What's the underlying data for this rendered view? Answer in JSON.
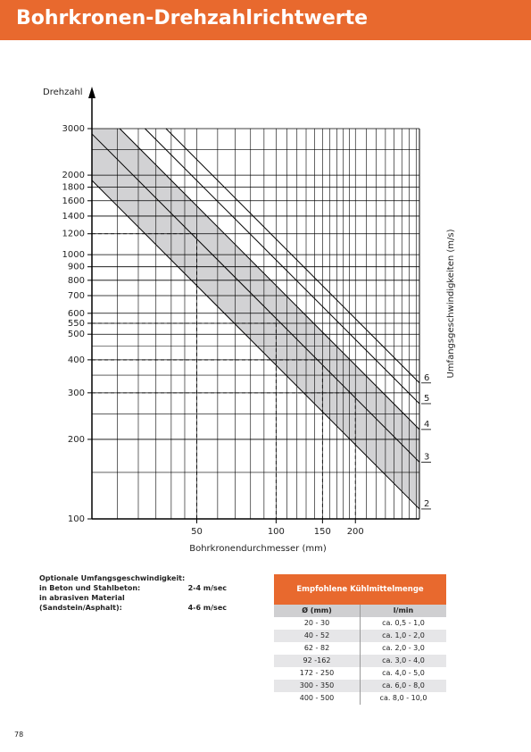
{
  "header": {
    "title": "Bohrkronen-Drehzahlrichtwerte"
  },
  "chart_data": {
    "type": "line",
    "y_label": "Drehzahl",
    "x_label": "Bohrkronendurchmesser (mm)",
    "y2_label": "Umfangsgeschwindigkeiten (m/s)",
    "log_x": true,
    "log_y": true,
    "xlim": [
      20,
      350
    ],
    "ylim": [
      100,
      3000
    ],
    "xticks": [
      50,
      100,
      150,
      200
    ],
    "yticks": [
      100,
      200,
      300,
      400,
      500,
      550,
      600,
      700,
      800,
      900,
      1000,
      1200,
      1400,
      1600,
      1800,
      2000,
      3000
    ],
    "xgrid": [
      25,
      30,
      35,
      40,
      45,
      50,
      60,
      70,
      80,
      90,
      100,
      110,
      120,
      130,
      140,
      150,
      160,
      170,
      180,
      190,
      200,
      220,
      240,
      260,
      280,
      300,
      320,
      340
    ],
    "ygrid": [
      150,
      250,
      350,
      450,
      2500
    ],
    "grid": true,
    "series": [
      {
        "name": "2",
        "color": "#000000",
        "x": [
          20,
          350
        ],
        "values": [
          1910,
          109
        ]
      },
      {
        "name": "3",
        "color": "#000000",
        "x": [
          20,
          350
        ],
        "values": [
          2865,
          164
        ]
      },
      {
        "name": "4",
        "color": "#000000",
        "x": [
          25.5,
          350
        ],
        "values": [
          3000,
          218
        ]
      },
      {
        "name": "5",
        "color": "#000000",
        "x": [
          31.8,
          350
        ],
        "values": [
          3000,
          273
        ]
      },
      {
        "name": "6",
        "color": "#000000",
        "x": [
          38.2,
          350
        ],
        "values": [
          3000,
          327
        ]
      }
    ],
    "band": {
      "from_series": 0,
      "to_series": 2,
      "color": "#d2d2d4"
    },
    "examples": {
      "x": [
        50,
        100,
        150,
        200
      ],
      "values": [
        1200,
        550,
        400,
        300
      ]
    }
  },
  "notes": {
    "title": "Optionale Umfangsgeschwindigkeit:",
    "items": [
      {
        "label": [
          "in Beton und Stahlbeton:"
        ],
        "value": "2-4 m/sec"
      },
      {
        "label": [
          "in abrasiven Material",
          "(Sandstein/Asphalt):"
        ],
        "value": "4-6 m/sec"
      }
    ]
  },
  "table": {
    "title": "Empfohlene Kühlmittelmenge",
    "columns": [
      "Ø (mm)",
      "l/min"
    ],
    "rows": [
      [
        "20 - 30",
        "ca. 0,5 - 1,0"
      ],
      [
        "40 - 52",
        "ca. 1,0 - 2,0"
      ],
      [
        "62 - 82",
        "ca. 2,0 - 3,0"
      ],
      [
        "92 -162",
        "ca. 3,0 - 4,0"
      ],
      [
        "172 - 250",
        "ca. 4,0 - 5,0"
      ],
      [
        "300 - 350",
        "ca. 6,0 - 8,0"
      ],
      [
        "400 - 500",
        "ca. 8,0 - 10,0"
      ]
    ]
  },
  "page_number": "78"
}
